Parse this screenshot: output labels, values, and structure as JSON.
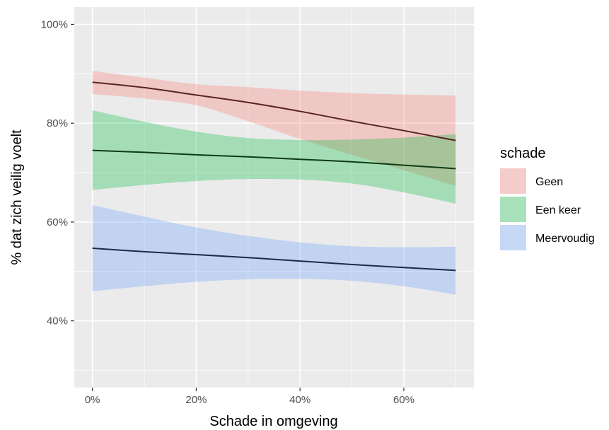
{
  "chart_data": {
    "type": "line",
    "xlabel": "Schade in omgeving",
    "ylabel": "% dat zich veilig voelt",
    "x_ticks": [
      {
        "value": 0,
        "label": "0%"
      },
      {
        "value": 20,
        "label": "20%"
      },
      {
        "value": 40,
        "label": "40%"
      },
      {
        "value": 60,
        "label": "60%"
      }
    ],
    "y_ticks": [
      {
        "value": 40,
        "label": "40%"
      },
      {
        "value": 60,
        "label": "60%"
      },
      {
        "value": 80,
        "label": "80%"
      },
      {
        "value": 100,
        "label": "100%"
      }
    ],
    "xlim": [
      -3.5,
      73.5
    ],
    "ylim": [
      26.5,
      103.5
    ],
    "grid": true,
    "legend": {
      "title": "schade",
      "position": "right"
    },
    "series": [
      {
        "name": "Geen",
        "fill_color": "#F8766D",
        "line_color": "#5a2424",
        "x": [
          0,
          10,
          20,
          30,
          40,
          50,
          60,
          70
        ],
        "y": [
          88.3,
          87.2,
          85.7,
          84.2,
          82.4,
          80.4,
          78.5,
          76.5
        ],
        "lower": [
          85.9,
          85.0,
          83.6,
          80.4,
          76.8,
          73.6,
          70.5,
          67.3
        ],
        "upper": [
          90.6,
          89.2,
          87.9,
          87.3,
          86.6,
          86.1,
          85.8,
          85.6
        ]
      },
      {
        "name": "Een keer",
        "fill_color": "#00BA38",
        "line_color": "#0d3b16",
        "x": [
          0,
          10,
          20,
          30,
          40,
          50,
          60,
          70
        ],
        "y": [
          74.5,
          74.1,
          73.6,
          73.2,
          72.7,
          72.2,
          71.5,
          70.8
        ],
        "lower": [
          66.5,
          67.5,
          68.3,
          68.7,
          68.6,
          67.8,
          66.0,
          63.7
        ],
        "upper": [
          82.6,
          80.3,
          78.3,
          77.0,
          76.6,
          76.7,
          77.1,
          77.8
        ]
      },
      {
        "name": "Meervoudig",
        "fill_color": "#619CFF",
        "line_color": "#1f2a44",
        "x": [
          0,
          10,
          20,
          30,
          40,
          50,
          60,
          70
        ],
        "y": [
          54.7,
          54.0,
          53.4,
          52.8,
          52.1,
          51.4,
          50.8,
          50.2
        ],
        "lower": [
          46.0,
          47.0,
          47.9,
          48.4,
          48.5,
          48.1,
          47.0,
          45.3
        ],
        "upper": [
          63.4,
          61.1,
          58.9,
          57.2,
          55.9,
          55.1,
          54.9,
          55.0
        ]
      }
    ]
  }
}
